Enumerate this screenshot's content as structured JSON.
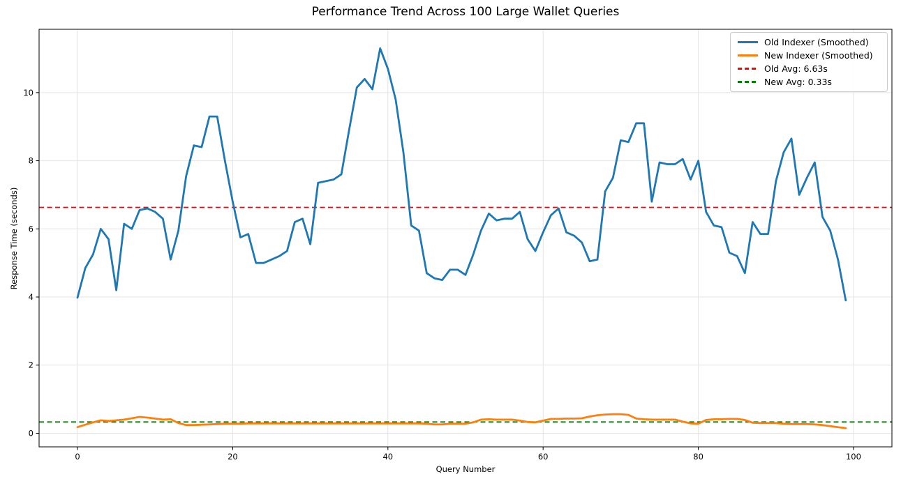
{
  "chart": {
    "title": "Performance Trend Across 100 Large Wallet Queries",
    "xlabel": "Query Number",
    "ylabel": "Response Time (seconds)"
  },
  "legend": {
    "items": [
      {
        "label": "Old Indexer (Smoothed)",
        "color": "#1f77b4",
        "dash": false
      },
      {
        "label": "New Indexer (Smoothed)",
        "color": "#ff7f0e",
        "dash": false
      },
      {
        "label": "Old Avg: 6.63s",
        "color": "#ff0000",
        "dash": true
      },
      {
        "label": "New Avg: 0.33s",
        "color": "#008000",
        "dash": true
      }
    ],
    "position": "upper right"
  },
  "chart_data": {
    "type": "line",
    "title": "Performance Trend Across 100 Large Wallet Queries",
    "xlabel": "Query Number",
    "ylabel": "Response Time (seconds)",
    "x_start": 0,
    "x_end": 99,
    "xlim": [
      -4.95,
      104.95
    ],
    "ylim": [
      -0.4,
      11.86
    ],
    "xticks": [
      0,
      20,
      40,
      60,
      80,
      100
    ],
    "yticks": [
      0,
      2,
      4,
      6,
      8,
      10
    ],
    "grid": true,
    "grid_color": "#e4e4e4",
    "series": [
      {
        "name": "Old Indexer (Smoothed)",
        "color": "#1f77b4",
        "width": 2.8,
        "values": [
          3.98,
          4.85,
          5.25,
          6.0,
          5.7,
          4.2,
          6.15,
          6.0,
          6.55,
          6.6,
          6.5,
          6.3,
          5.1,
          5.95,
          7.55,
          8.45,
          8.4,
          9.3,
          9.3,
          8.0,
          6.8,
          5.75,
          5.85,
          5.0,
          5.0,
          5.1,
          5.2,
          5.35,
          6.2,
          6.3,
          5.55,
          7.35,
          7.4,
          7.45,
          7.6,
          8.9,
          10.15,
          10.4,
          10.1,
          11.3,
          10.7,
          9.8,
          8.25,
          6.1,
          5.95,
          4.7,
          4.55,
          4.5,
          4.8,
          4.8,
          4.65,
          5.25,
          5.95,
          6.45,
          6.25,
          6.3,
          6.3,
          6.5,
          5.7,
          5.35,
          5.9,
          6.4,
          6.6,
          5.9,
          5.8,
          5.6,
          5.05,
          5.1,
          7.1,
          7.5,
          8.6,
          8.55,
          9.1,
          9.1,
          6.8,
          7.95,
          7.9,
          7.9,
          8.05,
          7.45,
          8.0,
          6.5,
          6.1,
          6.05,
          5.3,
          5.2,
          4.7,
          6.2,
          5.85,
          5.85,
          7.4,
          8.25,
          8.65,
          7.0,
          7.5,
          7.95,
          6.35,
          5.95,
          5.1,
          3.9
        ]
      },
      {
        "name": "New Indexer (Smoothed)",
        "color": "#ff7f0e",
        "width": 2.8,
        "values": [
          0.18,
          0.25,
          0.32,
          0.38,
          0.36,
          0.38,
          0.4,
          0.44,
          0.48,
          0.46,
          0.43,
          0.4,
          0.41,
          0.3,
          0.24,
          0.24,
          0.25,
          0.26,
          0.27,
          0.28,
          0.28,
          0.28,
          0.29,
          0.29,
          0.29,
          0.29,
          0.29,
          0.29,
          0.29,
          0.29,
          0.29,
          0.29,
          0.29,
          0.29,
          0.29,
          0.29,
          0.29,
          0.29,
          0.29,
          0.29,
          0.29,
          0.29,
          0.29,
          0.29,
          0.29,
          0.28,
          0.26,
          0.26,
          0.28,
          0.28,
          0.28,
          0.32,
          0.4,
          0.41,
          0.4,
          0.4,
          0.4,
          0.37,
          0.33,
          0.32,
          0.37,
          0.42,
          0.42,
          0.43,
          0.43,
          0.44,
          0.49,
          0.53,
          0.55,
          0.56,
          0.56,
          0.54,
          0.43,
          0.41,
          0.4,
          0.4,
          0.4,
          0.4,
          0.34,
          0.29,
          0.28,
          0.39,
          0.41,
          0.41,
          0.42,
          0.42,
          0.39,
          0.31,
          0.3,
          0.3,
          0.3,
          0.28,
          0.27,
          0.27,
          0.27,
          0.26,
          0.24,
          0.21,
          0.18,
          0.15
        ]
      }
    ],
    "hlines": [
      {
        "label": "Old Avg: 6.63s",
        "value": 6.63,
        "color": "#ff0000",
        "style": "dashed",
        "width": 1.8
      },
      {
        "label": "New Avg: 0.33s",
        "value": 0.33,
        "color": "#008000",
        "style": "dashed",
        "width": 1.8
      }
    ],
    "old_avg_seconds": 6.63,
    "new_avg_seconds": 0.33,
    "legend_position": "upper right"
  }
}
